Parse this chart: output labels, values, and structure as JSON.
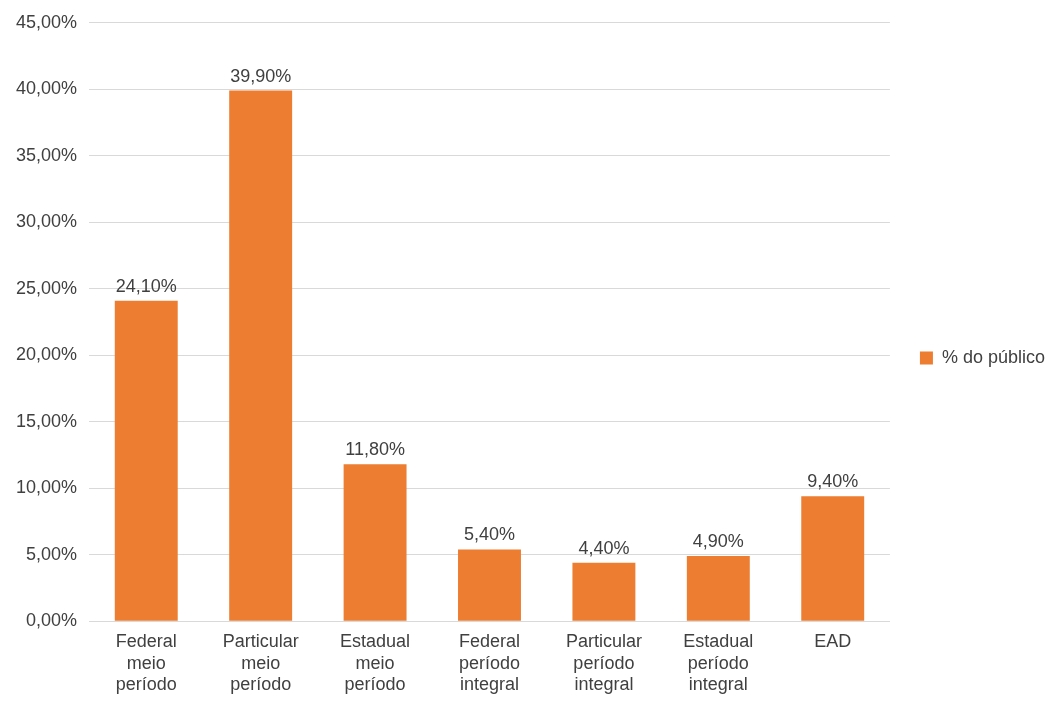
{
  "chart_data": {
    "type": "bar",
    "categories": [
      "Federal meio período",
      "Particular meio período",
      "Estadual meio período",
      "Federal período integral",
      "Particular período integral",
      "Estadual período integral",
      "EAD"
    ],
    "series": [
      {
        "name": "% do público",
        "color": "#ed7d31",
        "values": [
          24.1,
          39.9,
          11.8,
          5.4,
          4.4,
          4.9,
          9.4
        ],
        "value_labels": [
          "24,10%",
          "39,90%",
          "11,80%",
          "5,40%",
          "4,40%",
          "4,90%",
          "9,40%"
        ]
      }
    ],
    "ylim": [
      0,
      45
    ],
    "yticks": [
      {
        "value": 0,
        "label": "0,00%"
      },
      {
        "value": 5,
        "label": "5,00%"
      },
      {
        "value": 10,
        "label": "10,00%"
      },
      {
        "value": 15,
        "label": "15,00%"
      },
      {
        "value": 20,
        "label": "20,00%"
      },
      {
        "value": 25,
        "label": "25,00%"
      },
      {
        "value": 30,
        "label": "30,00%"
      },
      {
        "value": 35,
        "label": "35,00%"
      },
      {
        "value": 40,
        "label": "40,00%"
      },
      {
        "value": 45,
        "label": "45,00%"
      }
    ],
    "grid": "y",
    "legend": "right"
  }
}
